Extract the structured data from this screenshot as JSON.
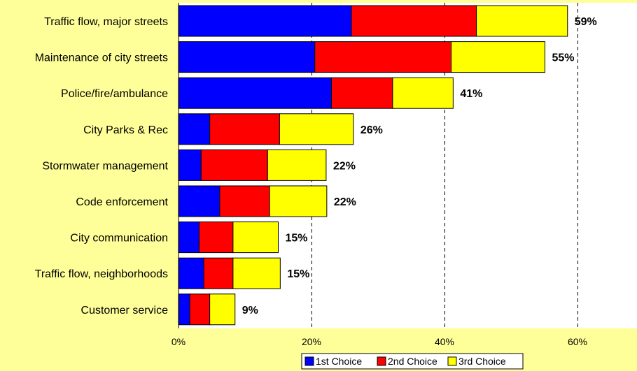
{
  "chart_data": {
    "type": "bar",
    "orientation": "horizontal",
    "stacked": true,
    "categories": [
      "Traffic flow, major streets",
      "Maintenance of city streets",
      "Police/fire/ambulance",
      "City Parks & Rec",
      "Stormwater management",
      "Code enforcement",
      "City communication",
      "Traffic flow, neighborhoods",
      "Customer service"
    ],
    "series": [
      {
        "name": "1st Choice",
        "color": "#0000ff",
        "values": [
          26,
          20.5,
          23,
          4.7,
          3.4,
          6.2,
          3.1,
          3.8,
          1.7
        ]
      },
      {
        "name": "2nd Choice",
        "color": "#ff0000",
        "values": [
          18.8,
          20.5,
          9.2,
          10.5,
          10,
          7.5,
          5.1,
          4.4,
          3
        ]
      },
      {
        "name": "3rd Choice",
        "color": "#ffff00",
        "values": [
          13.7,
          14.1,
          9.1,
          11.1,
          8.8,
          8.6,
          6.8,
          7.1,
          3.8
        ]
      }
    ],
    "totals": [
      "59%",
      "55%",
      "41%",
      "26%",
      "22%",
      "22%",
      "15%",
      "15%",
      "9%"
    ],
    "xlim": [
      0,
      68
    ],
    "xticks": [
      0,
      20,
      40,
      60
    ],
    "xtick_labels": [
      "0%",
      "20%",
      "40%",
      "60%"
    ],
    "grid": "vertical dashed at 20%, 40%, 60%",
    "legend_position": "bottom",
    "title": "",
    "xlabel": "",
    "ylabel": ""
  }
}
